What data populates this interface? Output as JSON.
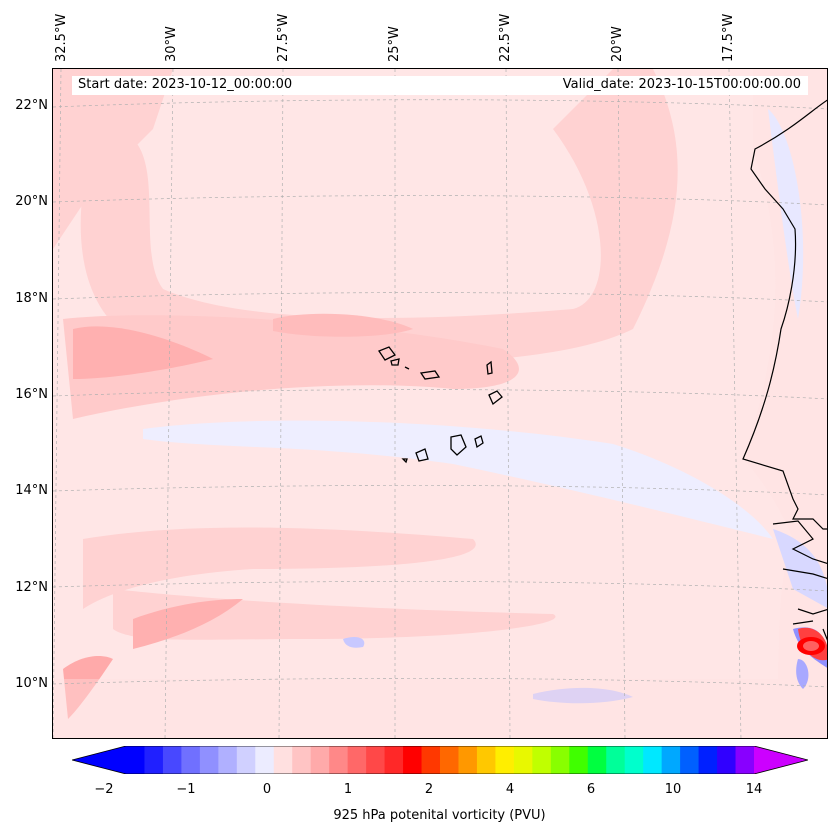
{
  "map": {
    "start_date": "Start date: 2023-10-12_00:00:00",
    "valid_date": "Valid_date: 2023-10-15T00:00:00.00",
    "lon_labels": [
      "32.5°W",
      "30°W",
      "27.5°W",
      "25°W",
      "22.5°W",
      "20°W",
      "17.5°W"
    ],
    "lat_labels": [
      "22°N",
      "20°N",
      "18°N",
      "16°N",
      "14°N",
      "12°N",
      "10°N"
    ]
  },
  "colorbar": {
    "label": "925 hPa potenital vorticity (PVU)",
    "ticks": [
      "−2",
      "−1",
      "0",
      "1",
      "2",
      "4",
      "6",
      "10",
      "14"
    ],
    "colors": [
      "#0000ff",
      "#2020ff",
      "#4848ff",
      "#7070ff",
      "#9090ff",
      "#b0b0ff",
      "#d0d0ff",
      "#ececff",
      "#ffe0e0",
      "#ffc4c4",
      "#ffaaaa",
      "#ff8888",
      "#ff6868",
      "#ff4848",
      "#ff2828",
      "#ff0000",
      "#ff3800",
      "#ff6800",
      "#ff9800",
      "#ffc800",
      "#ffee00",
      "#e8f800",
      "#c0ff00",
      "#88ff00",
      "#40ff00",
      "#00ff40",
      "#00ff99",
      "#00ffcc",
      "#00e8ff",
      "#00a8ff",
      "#0060ff",
      "#0020ff",
      "#3000ff",
      "#8800ff"
    ],
    "min_color": "#0000ff",
    "max_color": "#cc00ff"
  }
}
